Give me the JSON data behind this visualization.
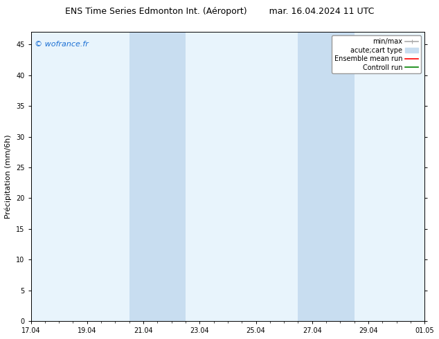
{
  "title_left": "ENS Time Series Edmonton Int. (Aéroport)",
  "title_right": "mar. 16.04.2024 11 UTC",
  "ylabel": "Précipitation (mm/6h)",
  "xlabel_ticks": [
    "17.04",
    "19.04",
    "21.04",
    "23.04",
    "25.04",
    "27.04",
    "29.04",
    "01.05"
  ],
  "xlim": [
    0,
    14
  ],
  "ylim": [
    0,
    47
  ],
  "yticks": [
    0,
    5,
    10,
    15,
    20,
    25,
    30,
    35,
    40,
    45
  ],
  "background_color": "#ffffff",
  "plot_bg_color": "#e8f4fc",
  "shaded_regions": [
    {
      "x_start": 3.5,
      "x_end": 4.5,
      "color": "#c8ddf0"
    },
    {
      "x_start": 4.5,
      "x_end": 5.5,
      "color": "#c8ddf0"
    },
    {
      "x_start": 9.5,
      "x_end": 10.5,
      "color": "#c8ddf0"
    },
    {
      "x_start": 10.5,
      "x_end": 11.5,
      "color": "#c8ddf0"
    }
  ],
  "tick_positions": [
    0,
    2,
    4,
    6,
    8,
    10,
    12,
    14
  ],
  "watermark_text": "© wofrance.fr",
  "watermark_color": "#1a6fd4",
  "legend_items": [
    {
      "label": "min/max",
      "color": "#aaaaaa",
      "lw": 1.2
    },
    {
      "label": "acute;cart type",
      "color": "#c8ddf0",
      "lw": 8
    },
    {
      "label": "Ensemble mean run",
      "color": "#ff0000",
      "lw": 1.2
    },
    {
      "label": "Controll run",
      "color": "#008000",
      "lw": 1.2
    }
  ],
  "title_fontsize": 9,
  "tick_fontsize": 7,
  "ylabel_fontsize": 8,
  "watermark_fontsize": 8,
  "legend_fontsize": 7
}
